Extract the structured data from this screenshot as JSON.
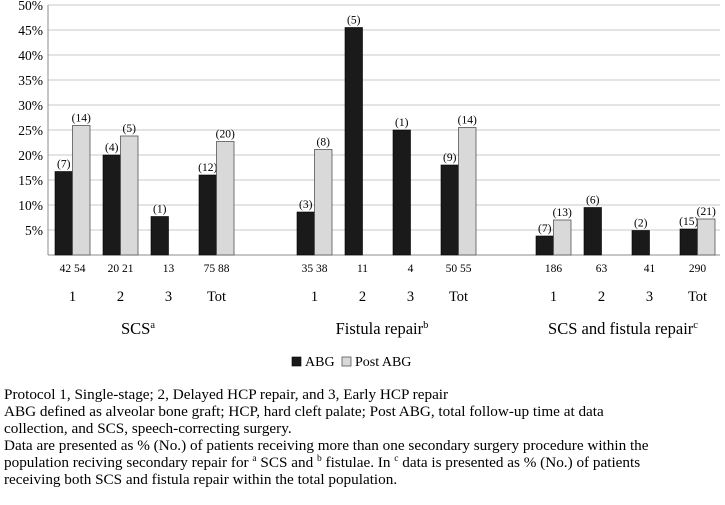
{
  "chart_data": {
    "type": "bar",
    "ylim": [
      0,
      50
    ],
    "ytick_labels": [
      "5%",
      "10%",
      "15%",
      "20%",
      "25%",
      "30%",
      "35%",
      "40%",
      "45%",
      "50%"
    ],
    "grid": true,
    "legend": {
      "position": "bottom"
    },
    "series": [
      {
        "name": "ABG",
        "color": "#1a1a1a"
      },
      {
        "name": "Post ABG",
        "color": "#d9d9d9"
      }
    ],
    "groups": [
      {
        "label": "SCS",
        "sup": "a",
        "subgroups": [
          {
            "label": "1",
            "abg": 16.7,
            "abg_n": "(7)",
            "post": 25.9,
            "post_n": "(14)",
            "totals": "42  54"
          },
          {
            "label": "2",
            "abg": 20.0,
            "abg_n": "(4)",
            "post": 23.8,
            "post_n": "(5)",
            "totals": "20  21"
          },
          {
            "label": "3",
            "abg": 7.7,
            "abg_n": "(1)",
            "post": null,
            "post_n": "",
            "totals": "13"
          },
          {
            "label": "Tot",
            "abg": 16.0,
            "abg_n": "(12)",
            "post": 22.7,
            "post_n": "(20)",
            "totals": "75  88"
          }
        ]
      },
      {
        "label": "Fistula repair",
        "sup": "b",
        "subgroups": [
          {
            "label": "1",
            "abg": 8.6,
            "abg_n": "(3)",
            "post": 21.1,
            "post_n": "(8)",
            "totals": "35  38"
          },
          {
            "label": "2",
            "abg": 45.5,
            "abg_n": "(5)",
            "post": null,
            "post_n": "",
            "totals": "11"
          },
          {
            "label": "3",
            "abg": 25.0,
            "abg_n": "(1)",
            "post": null,
            "post_n": "",
            "totals": "4"
          },
          {
            "label": "Tot",
            "abg": 18.0,
            "abg_n": "(9)",
            "post": 25.5,
            "post_n": "(14)",
            "totals": "50  55"
          }
        ]
      },
      {
        "label": "SCS and fistula repair",
        "sup": "c",
        "subgroups": [
          {
            "label": "1",
            "abg": 3.8,
            "abg_n": "(7)",
            "post": 7.0,
            "post_n": "(13)",
            "totals": "186"
          },
          {
            "label": "2",
            "abg": 9.5,
            "abg_n": "(6)",
            "post": null,
            "post_n": "",
            "totals": "63"
          },
          {
            "label": "3",
            "abg": 4.9,
            "abg_n": "(2)",
            "post": null,
            "post_n": "",
            "totals": "41"
          },
          {
            "label": "Tot",
            "abg": 5.2,
            "abg_n": "(15)",
            "post": 7.2,
            "post_n": "(21)",
            "totals": "290"
          }
        ]
      }
    ]
  },
  "caption": {
    "line1": "Protocol 1, Single-stage; 2, Delayed HCP repair, and 3, Early HCP repair",
    "line2": "ABG defined as alveolar bone graft; HCP, hard cleft palate; Post ABG, total follow-up time at data",
    "line3": "collection, and SCS, speech-correcting surgery.",
    "line4": "Data are presented as % (No.) of patients receiving more than one secondary surgery procedure within the",
    "line5a": "population reciving secondary repair for ",
    "line5sup1": "a",
    "line5b": " SCS and ",
    "line5sup2": "b",
    "line5c": " fistulae. In ",
    "line5sup3": "c",
    "line5d": " data is presented as % (No.) of patients",
    "line6": "receiving both SCS and fistula repair within the total population."
  }
}
